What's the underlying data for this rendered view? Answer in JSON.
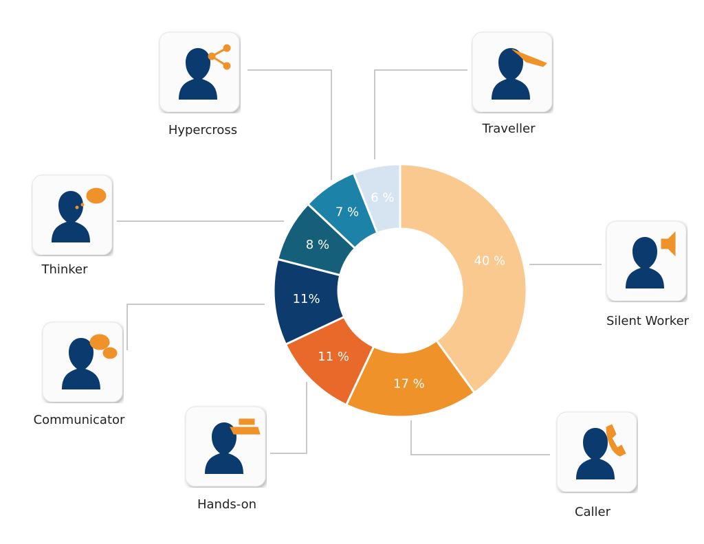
{
  "chart_data": {
    "type": "pie",
    "donut": true,
    "categories": [
      "Silent Worker",
      "Caller",
      "Hands-on",
      "Communicator",
      "Thinker",
      "Hypercross",
      "Traveller"
    ],
    "values": [
      40,
      17,
      11,
      11,
      8,
      7,
      6
    ],
    "value_labels": [
      "40 %",
      "17 %",
      "11 %",
      "11%",
      "8 %",
      "7 %",
      "6 %"
    ],
    "colors": [
      "#f9c98f",
      "#f0922a",
      "#e8692a",
      "#0d3b6e",
      "#155f7a",
      "#1c82a8",
      "#d6e4f2"
    ]
  }
}
